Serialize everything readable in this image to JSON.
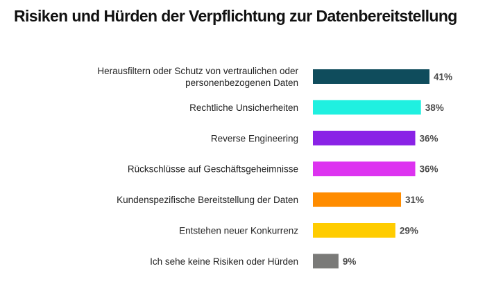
{
  "chart_data": {
    "type": "bar",
    "orientation": "horizontal",
    "title": "Risiken und Hürden der Verpflichtung zur Datenbereitstellung",
    "categories": [
      [
        "Herausfiltern oder Schutz von vertraulichen oder",
        "personenbezogenen Daten"
      ],
      [
        "Rechtliche Unsicherheiten"
      ],
      [
        "Reverse Engineering"
      ],
      [
        "Rückschlüsse auf Geschäftsgeheimnisse"
      ],
      [
        "Kundenspezifische Bereitstellung der Daten"
      ],
      [
        "Entstehen neuer Konkurrenz"
      ],
      [
        "Ich sehe keine Risiken oder Hürden"
      ]
    ],
    "values": [
      41,
      38,
      36,
      36,
      31,
      29,
      9
    ],
    "value_labels": [
      "41%",
      "38%",
      "36%",
      "36%",
      "31%",
      "29%",
      "9%"
    ],
    "colors": [
      "#0f4c5c",
      "#1ff0e0",
      "#8a22e6",
      "#dd33f0",
      "#ff8c00",
      "#ffcc00",
      "#7a7a78"
    ],
    "unit": "%",
    "xlim": [
      0,
      41
    ],
    "grid": false,
    "legend": "none"
  }
}
